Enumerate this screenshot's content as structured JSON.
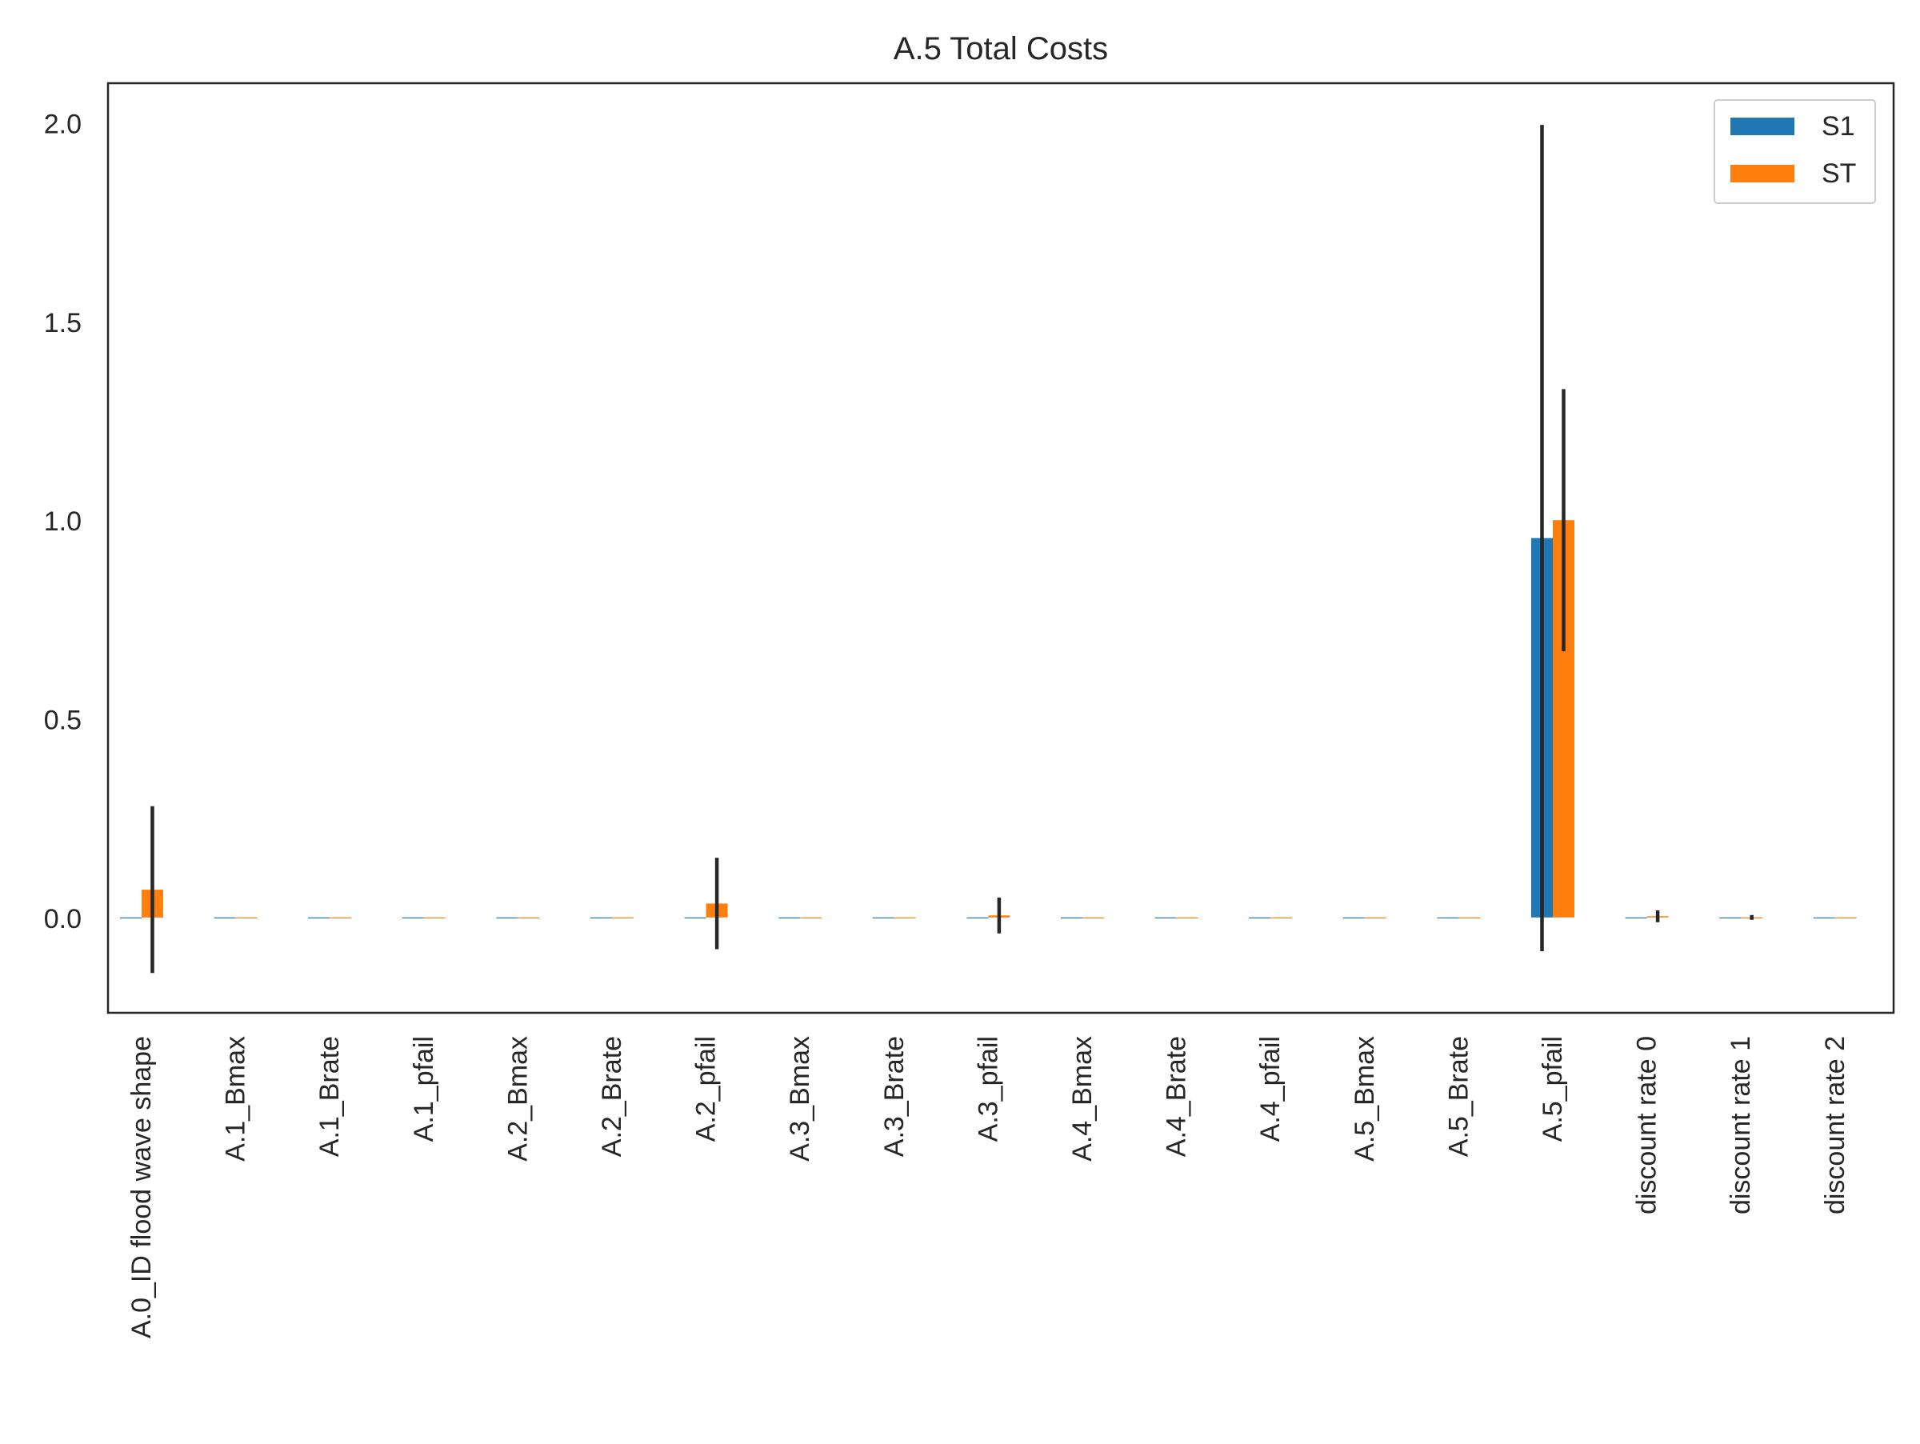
{
  "chart_data": {
    "type": "bar",
    "title": "A.5 Total Costs",
    "xlabel": "",
    "ylabel": "",
    "ylim": [
      -0.24,
      2.1
    ],
    "yticks": [
      0.0,
      0.5,
      1.0,
      1.5,
      2.0
    ],
    "ytick_labels": [
      "0.0",
      "0.5",
      "1.0",
      "1.5",
      "2.0"
    ],
    "grid": false,
    "legend_position": "top-right",
    "categories": [
      "A.0_ID flood wave shape",
      "A.1_Bmax",
      "A.1_Brate",
      "A.1_pfail",
      "A.2_Bmax",
      "A.2_Brate",
      "A.2_pfail",
      "A.3_Bmax",
      "A.3_Brate",
      "A.3_pfail",
      "A.4_Bmax",
      "A.4_Brate",
      "A.4_pfail",
      "A.5_Bmax",
      "A.5_Brate",
      "A.5_pfail",
      "discount rate 0",
      "discount rate 1",
      "discount rate 2"
    ],
    "series": [
      {
        "name": "S1",
        "color": "#1f77b4",
        "values": [
          0.0,
          0.0,
          0.0,
          0.0,
          0.0,
          0.0,
          0.0,
          0.0,
          0.0,
          0.0,
          0.0,
          0.0,
          0.0,
          0.0,
          0.0,
          0.955,
          0.0,
          0.0,
          0.0
        ],
        "errors": [
          0.0,
          0.0,
          0.0,
          0.0,
          0.0,
          0.0,
          0.0,
          0.0,
          0.0,
          0.0,
          0.0,
          0.0,
          0.0,
          0.0,
          0.0,
          1.04,
          0.0,
          0.0,
          0.0
        ]
      },
      {
        "name": "ST",
        "color": "#ff7f0e",
        "values": [
          0.07,
          0.0,
          0.0,
          0.0,
          0.0,
          0.0,
          0.035,
          0.0,
          0.0,
          0.005,
          0.0,
          0.0,
          0.0,
          0.0,
          0.0,
          1.0,
          0.003,
          0.0,
          0.0
        ],
        "errors": [
          0.21,
          0.0,
          0.0,
          0.0,
          0.0,
          0.0,
          0.115,
          0.0,
          0.0,
          0.045,
          0.0,
          0.0,
          0.0,
          0.0,
          0.0,
          0.33,
          0.015,
          0.006,
          0.0
        ]
      }
    ]
  }
}
